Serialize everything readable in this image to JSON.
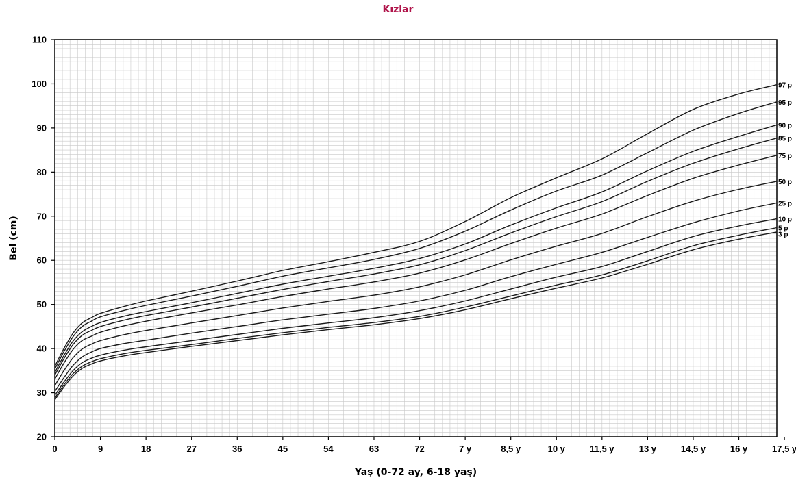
{
  "chart_data": {
    "type": "line",
    "title": "Kızlar",
    "xlabel": "Yaş (0-72 ay, 6-18 yaş)",
    "ylabel": "Bel (cm)",
    "ylim": [
      20,
      110
    ],
    "yticks": [
      20,
      30,
      40,
      50,
      60,
      70,
      80,
      90,
      100,
      110
    ],
    "xlim": [
      0,
      28.5
    ],
    "x_tick_labels": [
      "0",
      "9",
      "18",
      "27",
      "36",
      "45",
      "54",
      "63",
      "72",
      "7 y",
      "8,5 y",
      "10 y",
      "11,5 y",
      "13 y",
      "14,5 y",
      "16 y",
      "17,5 y"
    ],
    "x_tick_positions": [
      0,
      1.8,
      3.6,
      5.4,
      7.2,
      9,
      10.8,
      12.6,
      14.4,
      16.2,
      18,
      19.8,
      21.6,
      23.4,
      25.2,
      27,
      28.8
    ],
    "grid": true,
    "x_sample": [
      0,
      0.36,
      0.72,
      1.08,
      1.44,
      1.8,
      2.7,
      3.6,
      5.4,
      7.2,
      9,
      10.8,
      12.6,
      14.4,
      16.2,
      18,
      19.8,
      21.6,
      23.4,
      25.2,
      27,
      28.5
    ],
    "series": [
      {
        "name": "97 p",
        "values": [
          36,
          40,
          43.5,
          45.8,
          47,
          48,
          49.5,
          50.8,
          53,
          55.3,
          57.7,
          59.7,
          61.8,
          64.3,
          68.8,
          74.2,
          78.7,
          83,
          88.7,
          94.2,
          97.7,
          99.8
        ]
      },
      {
        "name": "95 p",
        "values": [
          35.4,
          39.3,
          42.7,
          45,
          46.2,
          47.2,
          48.6,
          49.8,
          51.9,
          54.1,
          56.4,
          58.3,
          60.2,
          62.7,
          66.6,
          71.4,
          75.7,
          79.3,
          84.4,
          89.5,
          93.3,
          95.9
        ]
      },
      {
        "name": "90 p",
        "values": [
          34.6,
          38.4,
          41.7,
          43.8,
          45,
          45.9,
          47.3,
          48.4,
          50.4,
          52.5,
          54.6,
          56.4,
          58.2,
          60.4,
          63.7,
          68,
          71.9,
          75.5,
          80.3,
          84.7,
          88.1,
          90.7
        ]
      },
      {
        "name": "85 p",
        "values": [
          34,
          37.7,
          40.9,
          43,
          44.1,
          45,
          46.4,
          47.5,
          49.4,
          51.4,
          53.4,
          55.2,
          56.9,
          59,
          62.2,
          66.2,
          69.9,
          73.3,
          77.9,
          82,
          85.3,
          87.7
        ]
      },
      {
        "name": "75 p",
        "values": [
          33.1,
          36.7,
          39.8,
          41.8,
          42.8,
          43.7,
          45.1,
          46.2,
          48.1,
          49.9,
          51.8,
          53.5,
          55.1,
          57.1,
          60.1,
          63.8,
          67.3,
          70.5,
          74.7,
          78.6,
          81.6,
          83.8
        ]
      },
      {
        "name": "50 p",
        "values": [
          31.6,
          35,
          37.9,
          39.9,
          41,
          41.8,
          43.1,
          44.1,
          45.8,
          47.5,
          49.2,
          50.7,
          52.1,
          54,
          56.7,
          60.1,
          63.2,
          66.1,
          69.9,
          73.4,
          76.1,
          77.9
        ]
      },
      {
        "name": "25 p",
        "values": [
          30.3,
          33.4,
          36.2,
          38.1,
          39.2,
          40,
          41.1,
          41.9,
          43.5,
          45,
          46.5,
          47.8,
          49.1,
          50.8,
          53.2,
          56.3,
          59.1,
          61.8,
          65.2,
          68.5,
          71.2,
          73
        ]
      },
      {
        "name": "10 p",
        "values": [
          29.4,
          32.4,
          35,
          36.8,
          37.8,
          38.5,
          39.6,
          40.4,
          41.8,
          43.2,
          44.6,
          45.8,
          47,
          48.6,
          50.8,
          53.5,
          56.2,
          58.6,
          62,
          65.4,
          67.8,
          69.4
        ]
      },
      {
        "name": "5 p",
        "values": [
          28.8,
          31.8,
          34.3,
          36,
          37,
          37.7,
          38.8,
          39.6,
          40.9,
          42.3,
          43.6,
          44.8,
          45.9,
          47.3,
          49.4,
          51.9,
          54.4,
          56.7,
          59.9,
          63.3,
          65.7,
          67.4
        ]
      },
      {
        "name": "3 p",
        "values": [
          28.4,
          31.3,
          33.8,
          35.5,
          36.5,
          37.2,
          38.3,
          39.1,
          40.5,
          41.8,
          43.1,
          44.3,
          45.4,
          46.8,
          48.8,
          51.3,
          53.7,
          56,
          59.1,
          62.4,
          64.8,
          66.4
        ]
      }
    ]
  }
}
